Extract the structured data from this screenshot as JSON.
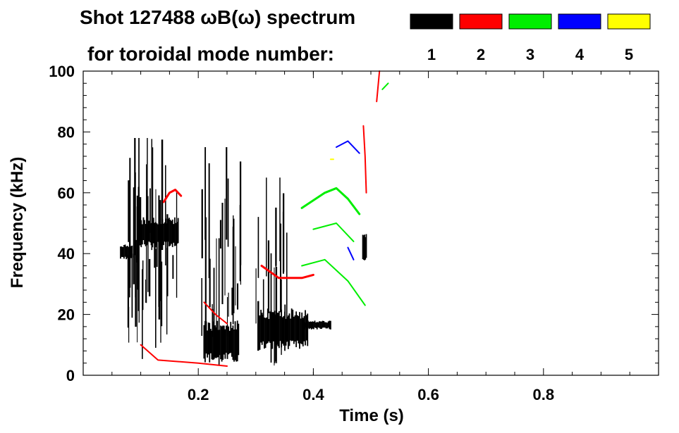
{
  "chart_data": {
    "type": "heatmap",
    "title_line1": "Shot 127488 ωB(ω) spectrum",
    "title_line2": "for toroidal mode number:",
    "xlabel": "Time (s)",
    "ylabel": "Frequency (kHz)",
    "xlim": [
      0.0,
      1.0
    ],
    "ylim": [
      0,
      100
    ],
    "x_ticks": [
      {
        "value": 0.2,
        "label": "0.2"
      },
      {
        "value": 0.4,
        "label": "0.4"
      },
      {
        "value": 0.6,
        "label": "0.6"
      },
      {
        "value": 0.8,
        "label": "0.8"
      }
    ],
    "y_ticks": [
      {
        "value": 0,
        "label": "0"
      },
      {
        "value": 20,
        "label": "20"
      },
      {
        "value": 40,
        "label": "40"
      },
      {
        "value": 60,
        "label": "60"
      },
      {
        "value": 80,
        "label": "80"
      },
      {
        "value": 100,
        "label": "100"
      }
    ],
    "legend": [
      {
        "mode": "1",
        "color": "#000000"
      },
      {
        "mode": "2",
        "color": "#ff0000"
      },
      {
        "mode": "3",
        "color": "#00ee00"
      },
      {
        "mode": "4",
        "color": "#0000ff"
      },
      {
        "mode": "5",
        "color": "#ffff00"
      }
    ],
    "series": [
      {
        "mode": "1",
        "color": "#000000",
        "segments": [
          {
            "kind": "spikes",
            "t0": 0.07,
            "t1": 0.165,
            "fmin": 5,
            "fmax": 78,
            "count": 46
          },
          {
            "kind": "blob",
            "t0": 0.065,
            "t1": 0.085,
            "fmin": 38,
            "fmax": 43
          },
          {
            "kind": "blob",
            "t0": 0.095,
            "t1": 0.165,
            "fmin": 42,
            "fmax": 52
          },
          {
            "kind": "spikes",
            "t0": 0.205,
            "t1": 0.275,
            "fmin": 1,
            "fmax": 75,
            "count": 28
          },
          {
            "kind": "blob",
            "t0": 0.21,
            "t1": 0.27,
            "fmin": 4,
            "fmax": 18
          },
          {
            "kind": "spikes",
            "t0": 0.3,
            "t1": 0.36,
            "fmin": 3,
            "fmax": 65,
            "count": 20
          },
          {
            "kind": "blob",
            "t0": 0.305,
            "t1": 0.39,
            "fmin": 8,
            "fmax": 22
          },
          {
            "kind": "blob",
            "t0": 0.385,
            "t1": 0.43,
            "fmin": 15,
            "fmax": 18
          },
          {
            "kind": "blob",
            "t0": 0.486,
            "t1": 0.492,
            "fmin": 36,
            "fmax": 47
          }
        ]
      },
      {
        "mode": "2",
        "color": "#ff0000",
        "segments": [
          {
            "kind": "line",
            "points": [
              [
                0.14,
                57
              ],
              [
                0.15,
                60
              ],
              [
                0.16,
                61
              ],
              [
                0.17,
                59
              ]
            ],
            "width": 3
          },
          {
            "kind": "line",
            "points": [
              [
                0.1,
                10
              ],
              [
                0.13,
                5
              ],
              [
                0.2,
                4
              ],
              [
                0.25,
                3
              ]
            ],
            "width": 2
          },
          {
            "kind": "line",
            "points": [
              [
                0.21,
                24
              ],
              [
                0.23,
                20
              ],
              [
                0.25,
                17
              ]
            ],
            "width": 2
          },
          {
            "kind": "line",
            "points": [
              [
                0.31,
                36
              ],
              [
                0.34,
                32
              ],
              [
                0.38,
                32
              ],
              [
                0.4,
                33
              ]
            ],
            "width": 3
          },
          {
            "kind": "line",
            "points": [
              [
                0.487,
                82
              ],
              [
                0.49,
                72
              ],
              [
                0.492,
                60
              ]
            ],
            "width": 2
          },
          {
            "kind": "line",
            "points": [
              [
                0.51,
                90
              ],
              [
                0.515,
                100
              ]
            ],
            "width": 2
          }
        ]
      },
      {
        "mode": "3",
        "color": "#00ee00",
        "segments": [
          {
            "kind": "line",
            "points": [
              [
                0.38,
                55
              ],
              [
                0.42,
                60
              ],
              [
                0.44,
                61.5
              ],
              [
                0.46,
                58
              ],
              [
                0.48,
                53
              ]
            ],
            "width": 3
          },
          {
            "kind": "line",
            "points": [
              [
                0.4,
                48
              ],
              [
                0.44,
                50
              ],
              [
                0.47,
                44
              ]
            ],
            "width": 2
          },
          {
            "kind": "line",
            "points": [
              [
                0.38,
                36
              ],
              [
                0.42,
                38
              ],
              [
                0.46,
                31
              ],
              [
                0.49,
                23
              ]
            ],
            "width": 2
          },
          {
            "kind": "line",
            "points": [
              [
                0.52,
                94
              ],
              [
                0.53,
                96
              ]
            ],
            "width": 2
          }
        ]
      },
      {
        "mode": "4",
        "color": "#0000ff",
        "segments": [
          {
            "kind": "line",
            "points": [
              [
                0.44,
                75
              ],
              [
                0.46,
                77
              ],
              [
                0.48,
                73
              ]
            ],
            "width": 2
          },
          {
            "kind": "line",
            "points": [
              [
                0.46,
                42
              ],
              [
                0.47,
                38
              ]
            ],
            "width": 2
          }
        ]
      },
      {
        "mode": "5",
        "color": "#ffff00",
        "segments": [
          {
            "kind": "line",
            "points": [
              [
                0.43,
                71
              ],
              [
                0.435,
                71
              ]
            ],
            "width": 2
          }
        ]
      }
    ]
  }
}
